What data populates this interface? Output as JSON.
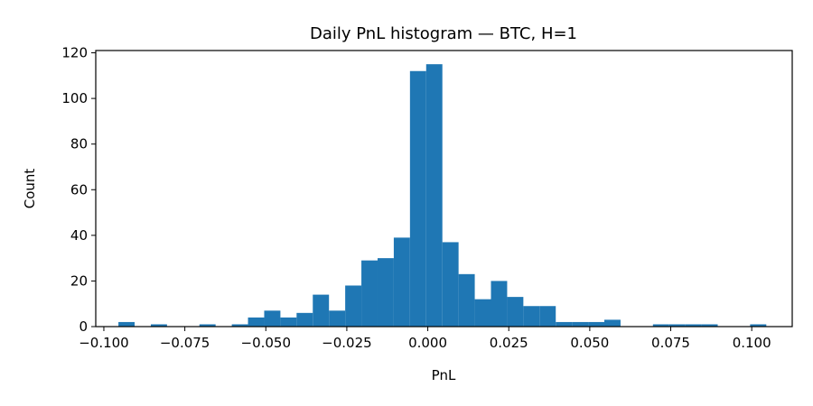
{
  "chart_data": {
    "type": "bar",
    "title": "Daily PnL histogram — BTC, H=1",
    "xlabel": "PnL",
    "ylabel": "Count",
    "xlim": [
      -0.1025,
      0.1125
    ],
    "ylim": [
      0,
      121
    ],
    "xticks": [
      -0.1,
      -0.075,
      -0.05,
      -0.025,
      0.0,
      0.025,
      0.05,
      0.075,
      0.1
    ],
    "xtick_labels": [
      "−0.100",
      "−0.075",
      "−0.050",
      "−0.025",
      "0.000",
      "0.025",
      "0.050",
      "0.075",
      "0.100"
    ],
    "yticks": [
      0,
      20,
      40,
      60,
      80,
      100,
      120
    ],
    "ytick_labels": [
      "0",
      "20",
      "40",
      "60",
      "80",
      "100",
      "120"
    ],
    "grid": false,
    "color": "#1f77b4",
    "bins": [
      {
        "x0": -0.0955,
        "x1": -0.0905,
        "count": 2
      },
      {
        "x0": -0.0855,
        "x1": -0.0805,
        "count": 1
      },
      {
        "x0": -0.0705,
        "x1": -0.0655,
        "count": 1
      },
      {
        "x0": -0.0605,
        "x1": -0.0555,
        "count": 1
      },
      {
        "x0": -0.0555,
        "x1": -0.0505,
        "count": 4
      },
      {
        "x0": -0.0505,
        "x1": -0.0455,
        "count": 7
      },
      {
        "x0": -0.0455,
        "x1": -0.0405,
        "count": 4
      },
      {
        "x0": -0.0405,
        "x1": -0.0355,
        "count": 6
      },
      {
        "x0": -0.0355,
        "x1": -0.0305,
        "count": 14
      },
      {
        "x0": -0.0305,
        "x1": -0.0255,
        "count": 7
      },
      {
        "x0": -0.0255,
        "x1": -0.0205,
        "count": 18
      },
      {
        "x0": -0.0205,
        "x1": -0.0155,
        "count": 29
      },
      {
        "x0": -0.0155,
        "x1": -0.0105,
        "count": 30
      },
      {
        "x0": -0.0105,
        "x1": -0.0055,
        "count": 39
      },
      {
        "x0": -0.0055,
        "x1": -0.0005,
        "count": 112
      },
      {
        "x0": -0.0005,
        "x1": 0.0045,
        "count": 115
      },
      {
        "x0": 0.0045,
        "x1": 0.0095,
        "count": 37
      },
      {
        "x0": 0.0095,
        "x1": 0.0145,
        "count": 23
      },
      {
        "x0": 0.0145,
        "x1": 0.0195,
        "count": 12
      },
      {
        "x0": 0.0195,
        "x1": 0.0245,
        "count": 20
      },
      {
        "x0": 0.0245,
        "x1": 0.0295,
        "count": 13
      },
      {
        "x0": 0.0295,
        "x1": 0.0345,
        "count": 9
      },
      {
        "x0": 0.0345,
        "x1": 0.0395,
        "count": 9
      },
      {
        "x0": 0.0395,
        "x1": 0.0445,
        "count": 2
      },
      {
        "x0": 0.0445,
        "x1": 0.0495,
        "count": 2
      },
      {
        "x0": 0.0495,
        "x1": 0.0545,
        "count": 2
      },
      {
        "x0": 0.0545,
        "x1": 0.0595,
        "count": 3
      },
      {
        "x0": 0.0695,
        "x1": 0.0745,
        "count": 1
      },
      {
        "x0": 0.0745,
        "x1": 0.0795,
        "count": 1
      },
      {
        "x0": 0.0795,
        "x1": 0.0845,
        "count": 1
      },
      {
        "x0": 0.0845,
        "x1": 0.0895,
        "count": 1
      },
      {
        "x0": 0.0995,
        "x1": 0.1045,
        "count": 1
      }
    ]
  }
}
